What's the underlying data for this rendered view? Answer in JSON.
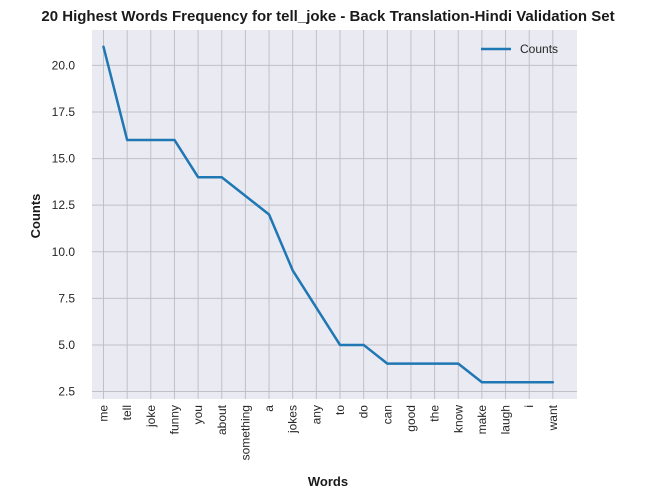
{
  "chart_data": {
    "type": "line",
    "title": "20 Highest Words Frequency for tell_joke - Back Translation-Hindi Validation Set",
    "xlabel": "Words",
    "ylabel": "Counts",
    "categories": [
      "me",
      "tell",
      "joke",
      "funny",
      "you",
      "about",
      "something",
      "a",
      "jokes",
      "any",
      "to",
      "do",
      "can",
      "good",
      "the",
      "know",
      "make",
      "laugh",
      "i",
      "want"
    ],
    "series": [
      {
        "name": "Counts",
        "values": [
          21,
          16,
          16,
          16,
          14,
          14,
          13,
          12,
          9,
          7,
          5,
          5,
          4,
          4,
          4,
          4,
          3,
          3,
          3,
          3
        ]
      }
    ],
    "yticks": [
      2.5,
      5.0,
      7.5,
      10.0,
      12.5,
      15.0,
      17.5,
      20.0
    ],
    "ytick_labels": [
      "2.5",
      "5.0",
      "7.5",
      "10.0",
      "12.5",
      "15.0",
      "17.5",
      "20.0"
    ],
    "ylim": [
      2.1,
      21.9
    ],
    "grid": true,
    "legend_position": "top-right",
    "colors": {
      "line": "#1f77b4",
      "plot_background": "#eaeaf2",
      "grid": "#c0c0c8",
      "page_background": "#ffffff"
    }
  }
}
